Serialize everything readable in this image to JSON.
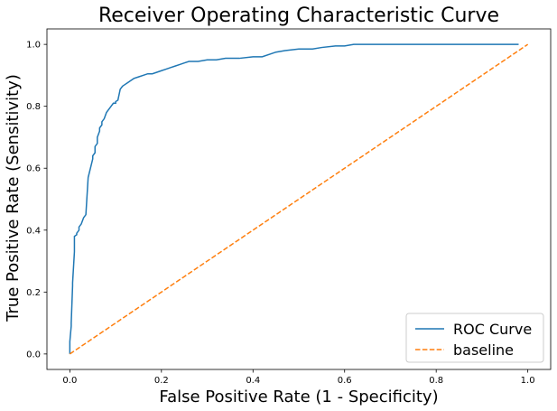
{
  "chart_data": {
    "type": "line",
    "title": "Receiver Operating Characteristic Curve",
    "xlabel": "False Positive Rate (1 - Specificity)",
    "ylabel": "True Positive Rate (Sensitivity)",
    "xlim": [
      -0.05,
      1.05
    ],
    "ylim": [
      -0.05,
      1.05
    ],
    "xticks": [
      "0.0",
      "0.2",
      "0.4",
      "0.6",
      "0.8",
      "1.0"
    ],
    "yticks": [
      "0.0",
      "0.2",
      "0.4",
      "0.6",
      "0.8",
      "1.0"
    ],
    "grid": false,
    "legend_position": "lower-right",
    "series": [
      {
        "name": "ROC Curve",
        "color": "#1f77b4",
        "style": "solid",
        "x": [
          0.0,
          0.0,
          0.003,
          0.003,
          0.006,
          0.006,
          0.01,
          0.01,
          0.015,
          0.015,
          0.02,
          0.02,
          0.025,
          0.03,
          0.035,
          0.04,
          0.045,
          0.05,
          0.05,
          0.055,
          0.055,
          0.06,
          0.06,
          0.065,
          0.065,
          0.07,
          0.07,
          0.075,
          0.08,
          0.085,
          0.09,
          0.095,
          0.1,
          0.1,
          0.105,
          0.11,
          0.115,
          0.12,
          0.125,
          0.13,
          0.13,
          0.135,
          0.14,
          0.15,
          0.16,
          0.17,
          0.18,
          0.19,
          0.2,
          0.21,
          0.22,
          0.23,
          0.24,
          0.25,
          0.26,
          0.28,
          0.3,
          0.32,
          0.34,
          0.35,
          0.37,
          0.4,
          0.42,
          0.44,
          0.45,
          0.47,
          0.5,
          0.53,
          0.55,
          0.58,
          0.6,
          0.62,
          0.64,
          0.66,
          0.7,
          0.75,
          0.8,
          0.85,
          0.9,
          0.95,
          0.98
        ],
        "y": [
          0.0,
          0.04,
          0.09,
          0.1,
          0.22,
          0.23,
          0.33,
          0.38,
          0.385,
          0.39,
          0.4,
          0.41,
          0.42,
          0.44,
          0.45,
          0.57,
          0.6,
          0.63,
          0.64,
          0.65,
          0.67,
          0.68,
          0.7,
          0.72,
          0.73,
          0.74,
          0.75,
          0.76,
          0.78,
          0.79,
          0.8,
          0.81,
          0.81,
          0.815,
          0.82,
          0.855,
          0.865,
          0.87,
          0.875,
          0.88,
          0.88,
          0.885,
          0.89,
          0.895,
          0.9,
          0.905,
          0.905,
          0.91,
          0.915,
          0.92,
          0.925,
          0.93,
          0.935,
          0.94,
          0.945,
          0.945,
          0.95,
          0.95,
          0.955,
          0.955,
          0.955,
          0.96,
          0.96,
          0.97,
          0.975,
          0.98,
          0.985,
          0.985,
          0.99,
          0.995,
          0.995,
          1.0,
          1.0,
          1.0,
          1.0,
          1.0,
          1.0,
          1.0,
          1.0,
          1.0,
          1.0
        ]
      },
      {
        "name": "baseline",
        "color": "#ff7f0e",
        "style": "dashed",
        "x": [
          0.0,
          1.0
        ],
        "y": [
          0.0,
          1.0
        ]
      }
    ]
  }
}
